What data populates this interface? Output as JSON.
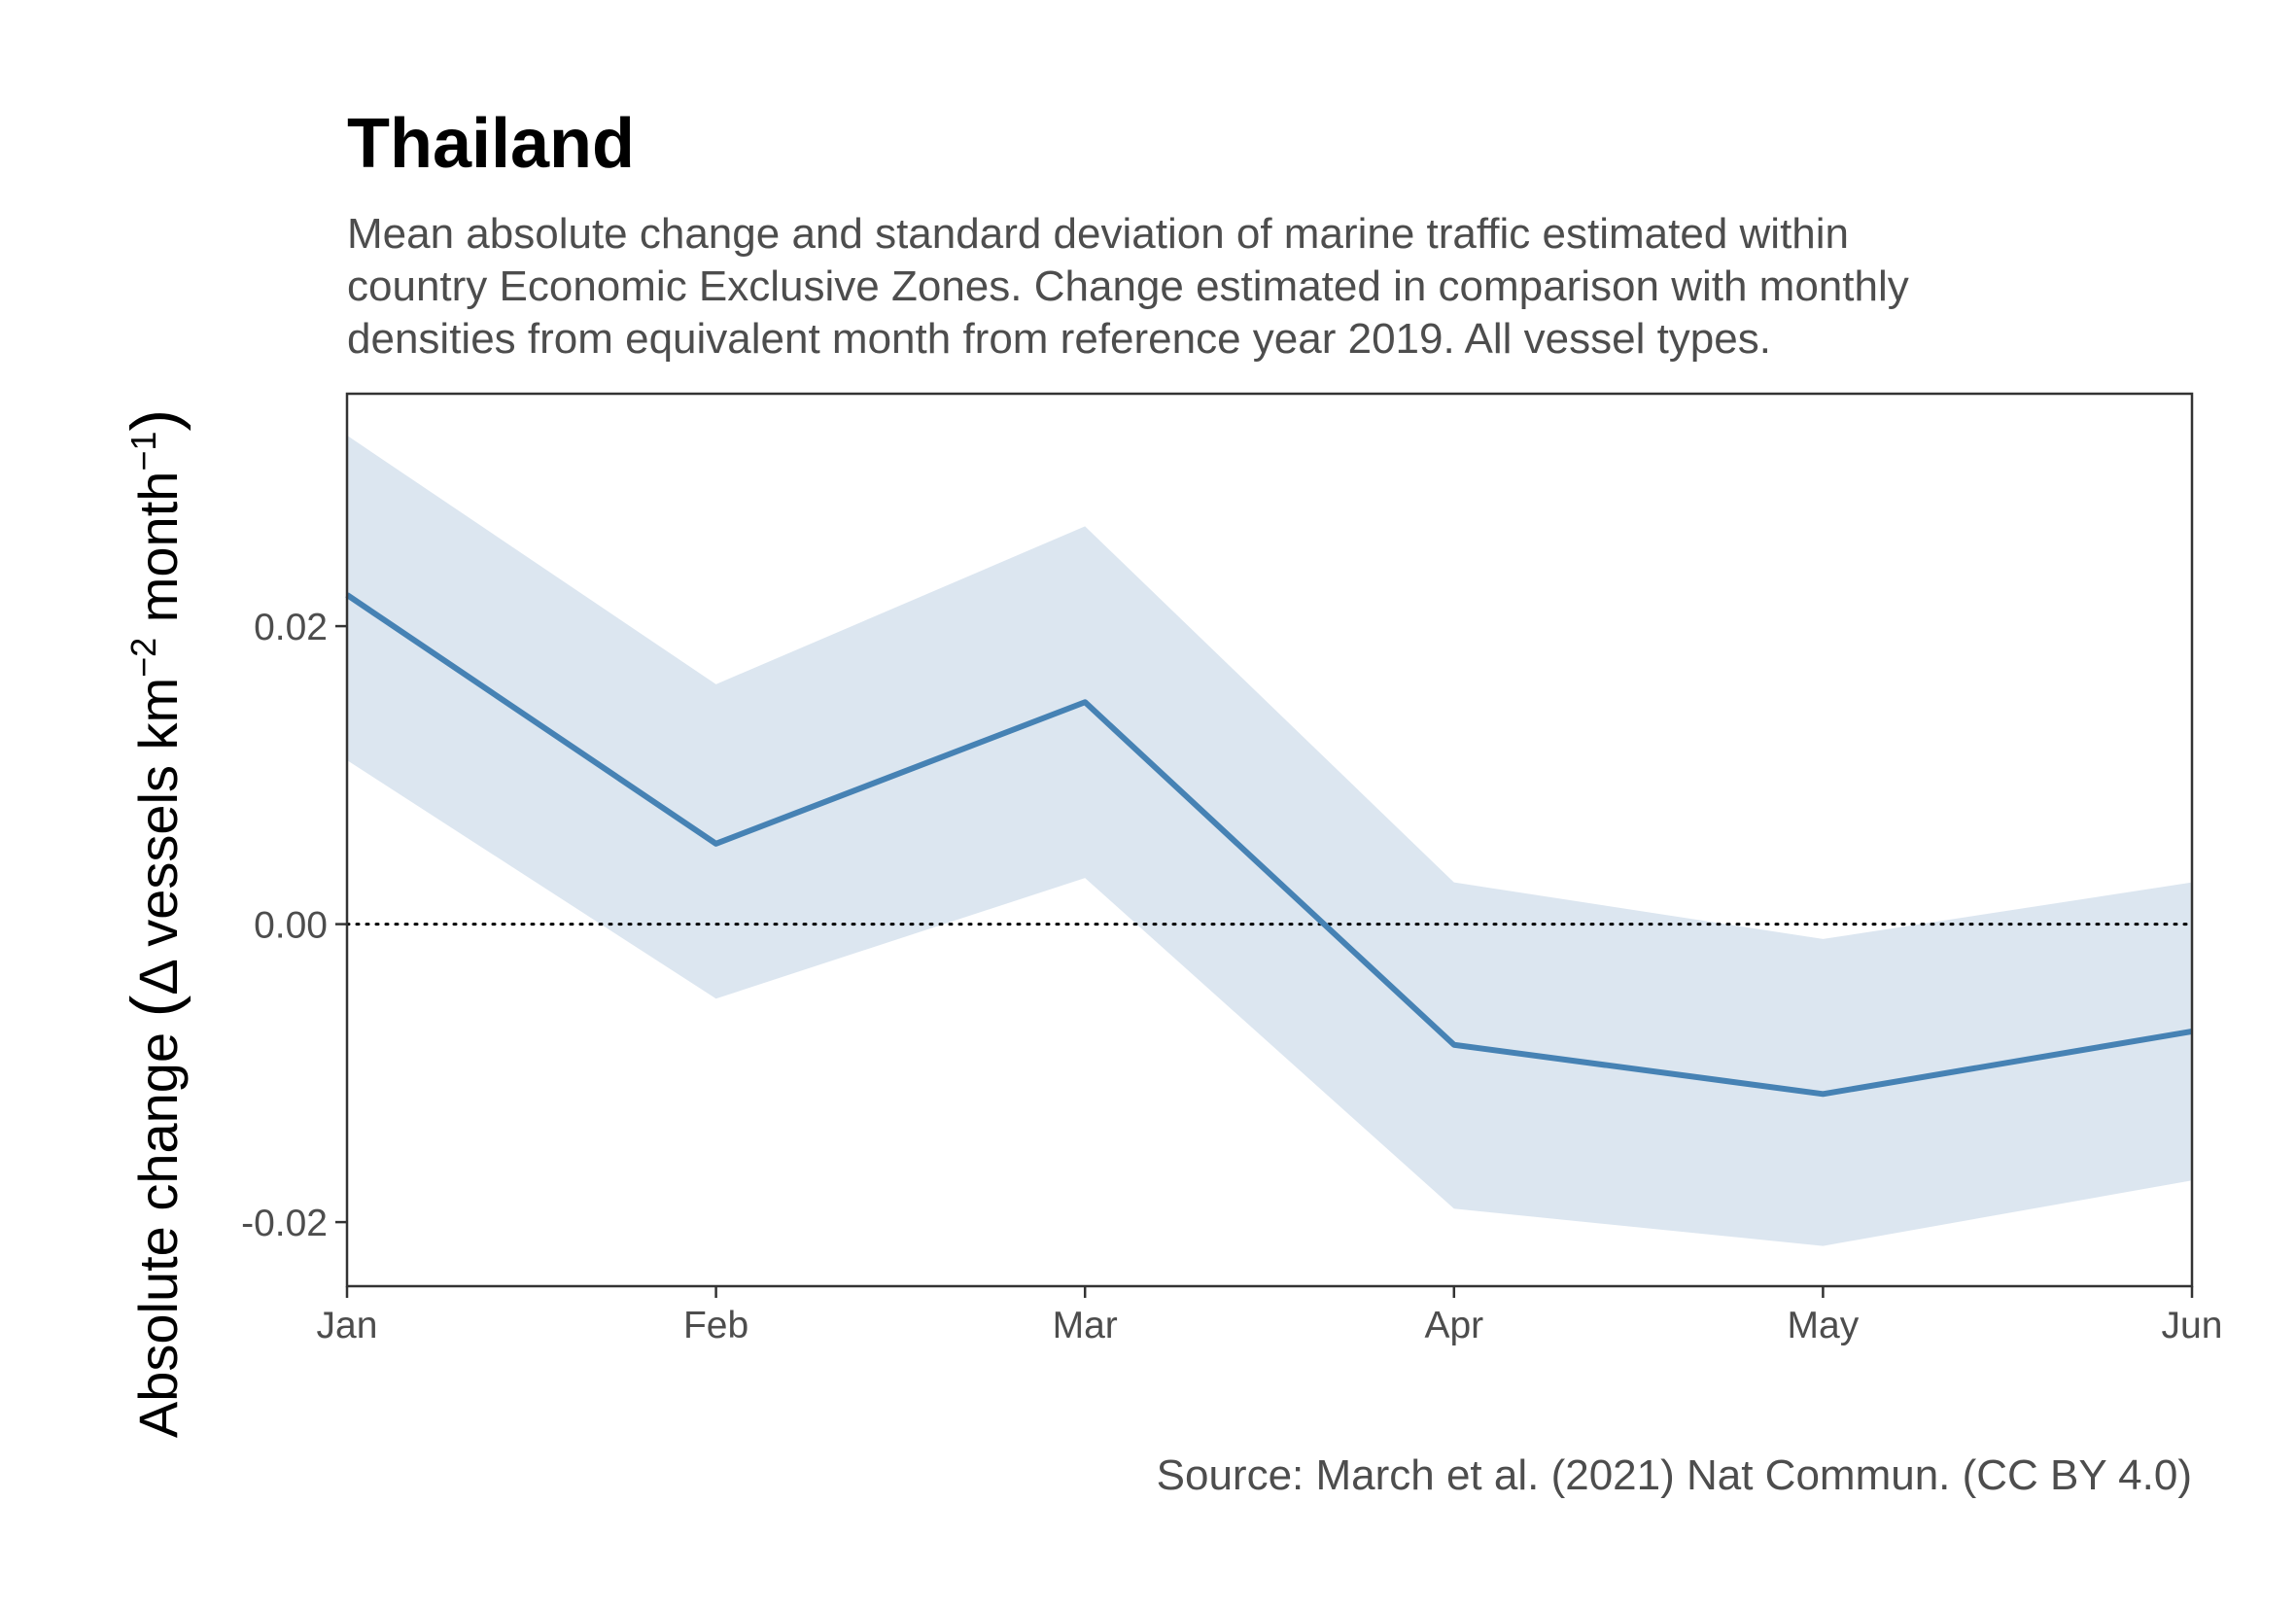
{
  "chart_data": {
    "type": "line",
    "title": "Thailand",
    "subtitle_lines": [
      "Mean absolute change and standard deviation of marine traffic estimated within",
      "country Economic Exclusive Zones. Change estimated in comparison with monthly",
      "densities from equivalent month from reference year 2019. All vessel types."
    ],
    "caption": "Source: March et al. (2021) Nat Commun. (CC BY 4.0)",
    "ylabel": {
      "main": "Absolute change",
      "open_paren": "(",
      "delta": "Δ",
      "unit_a": " vessels km",
      "sup_a": "−2",
      "unit_b": " month",
      "sup_b": "−1",
      "close_paren": ")"
    },
    "xlabel": "",
    "x": [
      "Jan",
      "Feb",
      "Mar",
      "Apr",
      "May",
      "Jun"
    ],
    "series": [
      {
        "values": [
          0.0221,
          0.0054,
          0.0149,
          -0.0081,
          -0.0114,
          -0.0072
        ],
        "lower": [
          0.011,
          -0.005,
          0.0031,
          -0.0191,
          -0.0216,
          -0.0172
        ],
        "upper": [
          0.0328,
          0.0161,
          0.0267,
          0.0028,
          -0.001,
          0.0028
        ]
      }
    ],
    "yticks": [
      -0.02,
      0.0,
      0.02
    ],
    "ytick_labels": [
      "-0.02",
      "0.00",
      "0.02"
    ],
    "ylim": [
      -0.0243,
      0.0356
    ],
    "reference_line": 0,
    "reference_line_style": "dotted",
    "grid": false,
    "colors": {
      "line": "#4682b4",
      "band": "#dce6f0",
      "frame": "#333333",
      "reference": "#000000"
    }
  }
}
